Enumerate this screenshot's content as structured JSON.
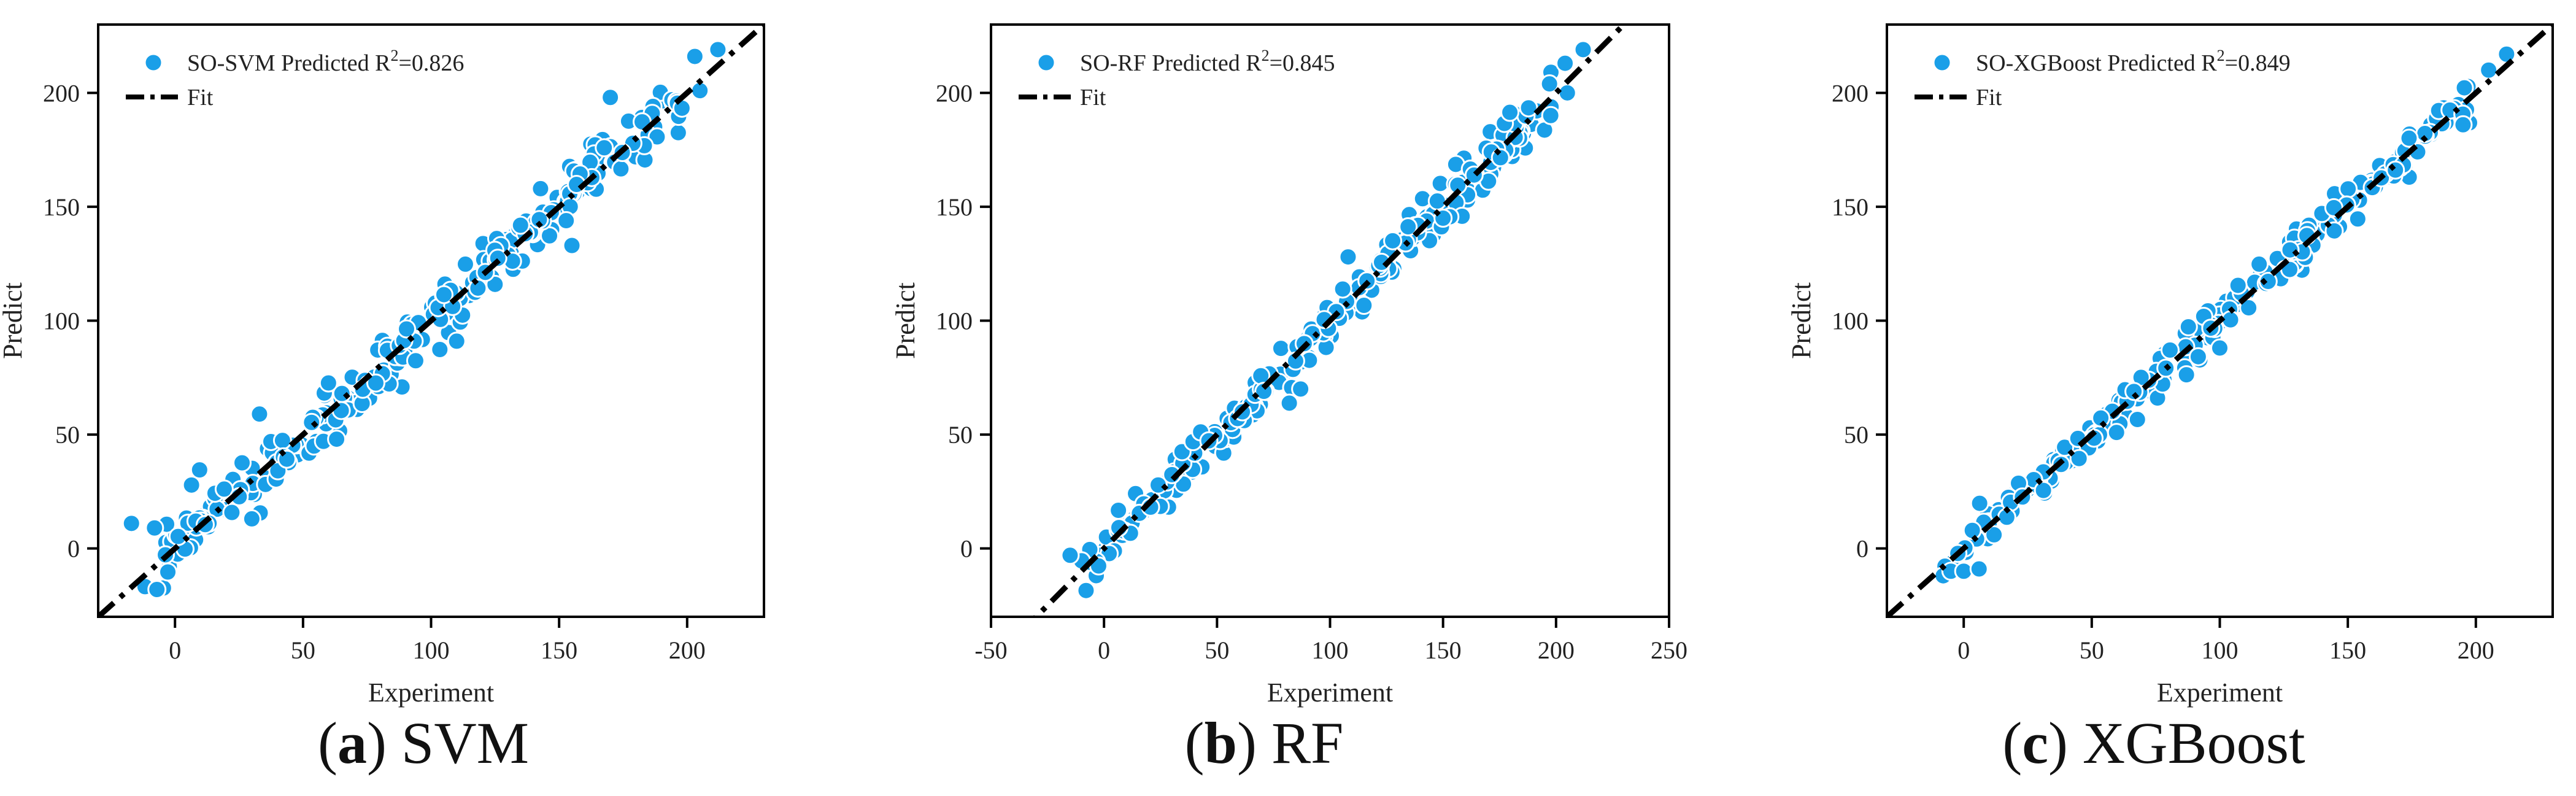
{
  "colors": {
    "point": "#1a9fe8",
    "point_stroke": "#ffffff",
    "fit": "#000000",
    "frame": "#000000"
  },
  "chart_data": [
    {
      "type": "scatter",
      "panel_letter": "a",
      "caption": "SVM",
      "xlabel": "Experiment",
      "ylabel": "Predict",
      "xlim": [
        -30,
        230
      ],
      "ylim": [
        -30,
        230
      ],
      "xticks": [
        0,
        50,
        100,
        150,
        200
      ],
      "yticks": [
        0,
        50,
        100,
        150,
        200
      ],
      "legend": {
        "placement": "top-left",
        "series_label": "SO-SVM Predicted R",
        "r2_value": "=0.826",
        "sup": "2",
        "fit_label": "Fit"
      },
      "fit": {
        "slope": 1.0,
        "intercept": 0.0
      },
      "noise": 7,
      "seed": 11,
      "n_points": 260,
      "extra_points": [
        [
          -17,
          11
        ],
        [
          -8,
          9
        ],
        [
          33,
          59
        ],
        [
          30,
          13
        ],
        [
          110,
          91
        ],
        [
          155,
          133
        ],
        [
          170,
          198
        ],
        [
          205,
          201
        ],
        [
          212,
          219
        ],
        [
          203,
          216
        ]
      ]
    },
    {
      "type": "scatter",
      "panel_letter": "b",
      "caption": "RF",
      "xlabel": "Experiment",
      "ylabel": "Predict",
      "xlim": [
        -50,
        250
      ],
      "ylim": [
        -30,
        230
      ],
      "xticks": [
        -50,
        0,
        50,
        100,
        150,
        200,
        250
      ],
      "yticks": [
        0,
        50,
        100,
        150,
        200
      ],
      "legend": {
        "placement": "top-left",
        "series_label": "SO-RF Predicted R",
        "r2_value": "=0.845",
        "sup": "2",
        "fit_label": "Fit"
      },
      "fit": {
        "slope": 1.0,
        "intercept": 0.0
      },
      "noise": 5,
      "seed": 23,
      "n_points": 260,
      "extra_points": [
        [
          -15,
          -3
        ],
        [
          87,
          70
        ],
        [
          108,
          128
        ],
        [
          150,
          145
        ],
        [
          204,
          213
        ],
        [
          212,
          219
        ],
        [
          205,
          200
        ]
      ]
    },
    {
      "type": "scatter",
      "panel_letter": "c",
      "caption": "XGBoost",
      "xlabel": "Experiment",
      "ylabel": "Predict",
      "xlim": [
        -30,
        230
      ],
      "ylim": [
        -30,
        230
      ],
      "xticks": [
        0,
        50,
        100,
        150,
        200
      ],
      "yticks": [
        0,
        50,
        100,
        150,
        200
      ],
      "legend": {
        "placement": "top-left",
        "series_label": "SO-XGBoost Predicted R",
        "r2_value": "=0.849",
        "sup": "2",
        "fit_label": "Fit"
      },
      "fit": {
        "slope": 1.0,
        "intercept": 0.0
      },
      "noise": 4.5,
      "seed": 37,
      "n_points": 260,
      "extra_points": [
        [
          -8,
          -12
        ],
        [
          -5,
          -10
        ],
        [
          0,
          -10
        ],
        [
          6,
          -9
        ],
        [
          100,
          88
        ],
        [
          195,
          186
        ],
        [
          212,
          217
        ],
        [
          205,
          210
        ]
      ]
    }
  ]
}
